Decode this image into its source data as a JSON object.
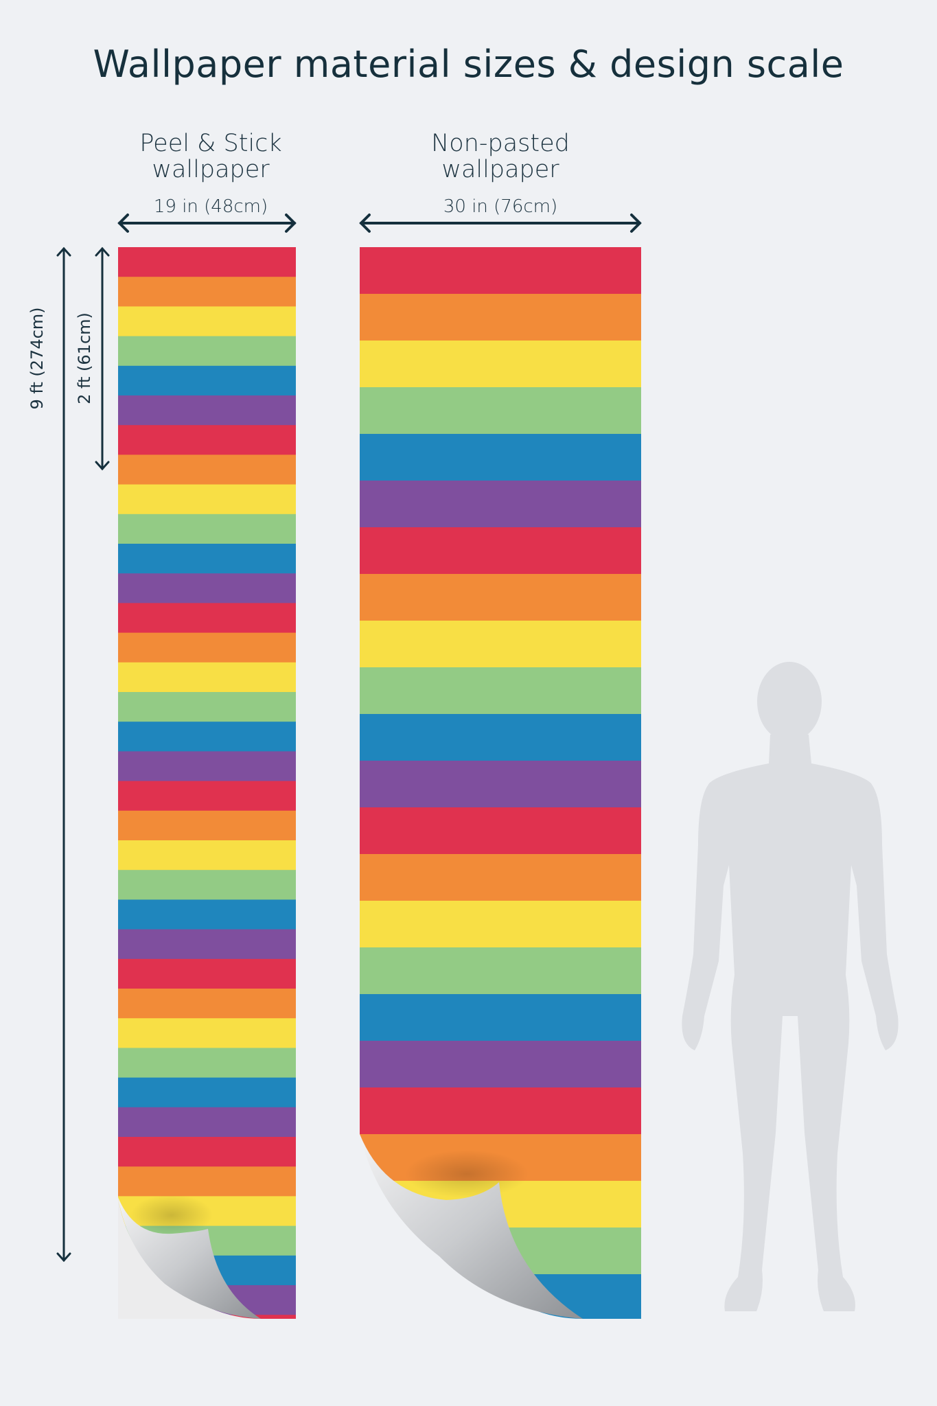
{
  "title": "Wallpaper material sizes & design scale",
  "peel_stick": {
    "label_line1": "Peel & Stick",
    "label_line2": "wallpaper",
    "width": "19 in (48cm)"
  },
  "non_pasted": {
    "label_line1": "Non-pasted",
    "label_line2": "wallpaper",
    "width": "30 in (76cm)"
  },
  "height_total": "9 ft (274cm)",
  "pattern_repeat": "2 ft (61cm)",
  "colors": {
    "background": "#eff1f4",
    "text": "#16303c",
    "stripes": [
      "#e0324f",
      "#f28b38",
      "#f8df45",
      "#93cb85",
      "#1f86bd",
      "#7f4f9e"
    ],
    "silhouette": "#dcdee2"
  },
  "icons": [
    "double-arrow-horizontal",
    "double-arrow-vertical",
    "page-curl",
    "human-silhouette"
  ]
}
